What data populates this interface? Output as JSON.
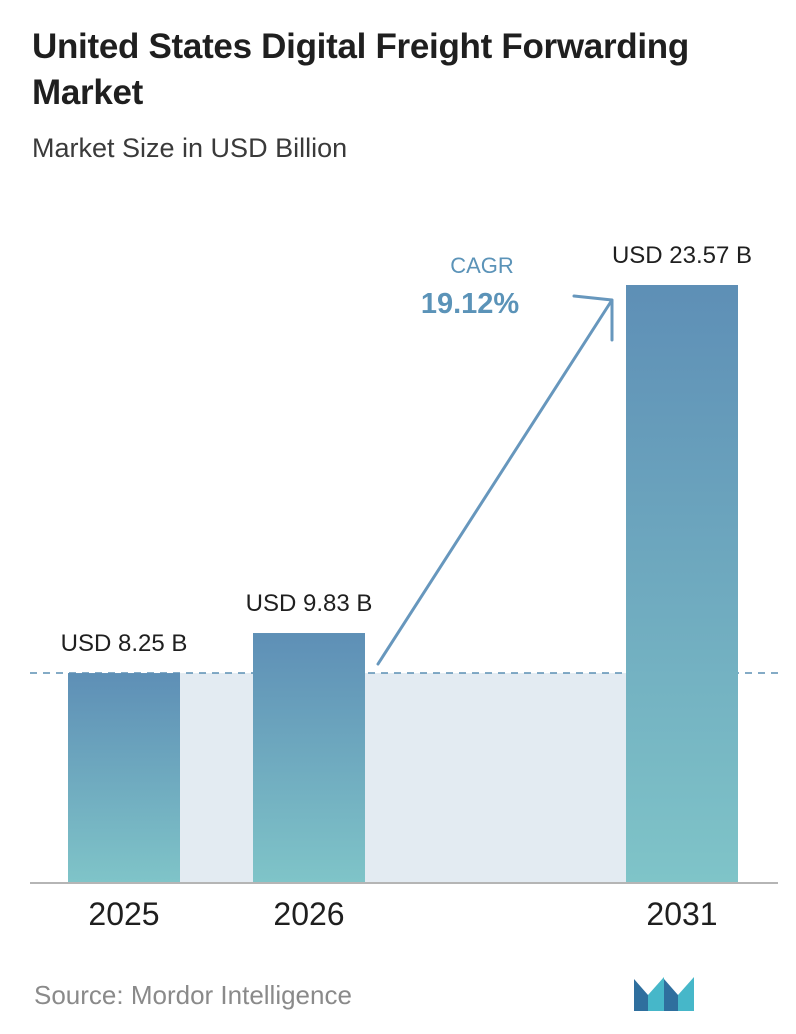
{
  "header": {
    "title": "United States Digital Freight Forwarding Market",
    "subtitle": "Market Size in USD Billion"
  },
  "chart_data": {
    "type": "bar",
    "categories": [
      "2025",
      "2026",
      "2031"
    ],
    "values": [
      8.25,
      9.83,
      23.57
    ],
    "value_labels": [
      "USD 8.25 B",
      "USD 9.83 B",
      "USD 23.57 B"
    ],
    "xlabel": "",
    "ylabel": "",
    "ylim": [
      0,
      23.57
    ],
    "grid": false,
    "legend": "none",
    "reference_line": {
      "value": 8.25,
      "style": "dashed"
    },
    "annotation": {
      "label": "CAGR",
      "value": "19.12%",
      "from": "2026",
      "to": "2031"
    }
  },
  "colors": {
    "bar_top": "#5e8fb6",
    "bar_bottom": "#7fc4c8",
    "shade": "#e3ebf2",
    "reference_line": "#5b8fb3",
    "arrow": "#6797bd",
    "cagr_text": "#5b93b8"
  },
  "footer": {
    "source": "Source:  Mordor Intelligence",
    "logo_icon": "mordor-intelligence-logo-icon"
  }
}
